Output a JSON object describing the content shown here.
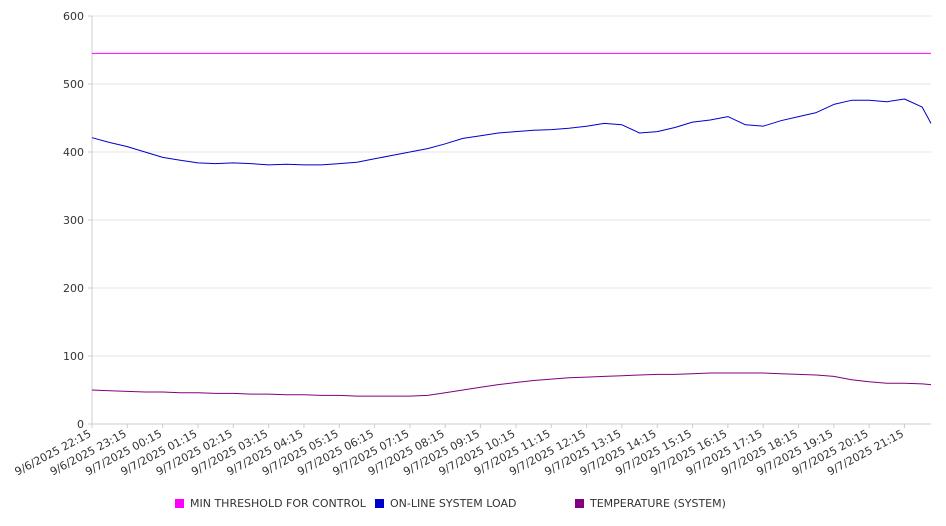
{
  "chart_data": {
    "type": "line",
    "title": "",
    "xlabel": "",
    "ylabel": "",
    "ylim": [
      0,
      600
    ],
    "yticks": [
      0,
      100,
      200,
      300,
      400,
      500,
      600
    ],
    "grid": true,
    "legend_position": "bottom",
    "x_ticks": [
      "9/6/2025 22:15",
      "9/6/2025 23:15",
      "9/7/2025 00:15",
      "9/7/2025 01:15",
      "9/7/2025 02:15",
      "9/7/2025 03:15",
      "9/7/2025 04:15",
      "9/7/2025 05:15",
      "9/7/2025 06:15",
      "9/7/2025 07:15",
      "9/7/2025 08:15",
      "9/7/2025 09:15",
      "9/7/2025 10:15",
      "9/7/2025 11:15",
      "9/7/2025 12:15",
      "9/7/2025 13:15",
      "9/7/2025 14:15",
      "9/7/2025 15:15",
      "9/7/2025 16:15",
      "9/7/2025 17:15",
      "9/7/2025 18:15",
      "9/7/2025 19:15",
      "9/7/2025 20:15",
      "9/7/2025 21:15"
    ],
    "x": [
      "9/6/2025 22:15",
      "9/6/2025 22:45",
      "9/6/2025 23:15",
      "9/6/2025 23:45",
      "9/7/2025 00:15",
      "9/7/2025 00:45",
      "9/7/2025 01:15",
      "9/7/2025 01:45",
      "9/7/2025 02:15",
      "9/7/2025 02:45",
      "9/7/2025 03:15",
      "9/7/2025 03:45",
      "9/7/2025 04:15",
      "9/7/2025 04:45",
      "9/7/2025 05:15",
      "9/7/2025 05:45",
      "9/7/2025 06:15",
      "9/7/2025 06:45",
      "9/7/2025 07:15",
      "9/7/2025 07:45",
      "9/7/2025 08:15",
      "9/7/2025 08:45",
      "9/7/2025 09:15",
      "9/7/2025 09:45",
      "9/7/2025 10:15",
      "9/7/2025 10:45",
      "9/7/2025 11:15",
      "9/7/2025 11:45",
      "9/7/2025 12:15",
      "9/7/2025 12:45",
      "9/7/2025 13:15",
      "9/7/2025 13:45",
      "9/7/2025 14:15",
      "9/7/2025 14:45",
      "9/7/2025 15:15",
      "9/7/2025 15:45",
      "9/7/2025 16:15",
      "9/7/2025 16:45",
      "9/7/2025 17:15",
      "9/7/2025 17:45",
      "9/7/2025 18:15",
      "9/7/2025 18:45",
      "9/7/2025 19:15",
      "9/7/2025 19:45",
      "9/7/2025 20:15",
      "9/7/2025 20:45",
      "9/7/2025 21:15",
      "9/7/2025 21:45",
      "9/7/2025 22:00"
    ],
    "series": [
      {
        "name": "MIN THRESHOLD FOR CONTROL",
        "color": "#ff00ff",
        "values": [
          545,
          545,
          545,
          545,
          545,
          545,
          545,
          545,
          545,
          545,
          545,
          545,
          545,
          545,
          545,
          545,
          545,
          545,
          545,
          545,
          545,
          545,
          545,
          545,
          545,
          545,
          545,
          545,
          545,
          545,
          545,
          545,
          545,
          545,
          545,
          545,
          545,
          545,
          545,
          545,
          545,
          545,
          545,
          545,
          545,
          545,
          545,
          545,
          545
        ]
      },
      {
        "name": "ON-LINE SYSTEM LOAD",
        "color": "#0000cc",
        "values": [
          421,
          414,
          408,
          400,
          392,
          388,
          384,
          383,
          384,
          383,
          381,
          382,
          381,
          381,
          383,
          385,
          390,
          395,
          400,
          405,
          412,
          420,
          424,
          428,
          430,
          432,
          433,
          435,
          438,
          442,
          440,
          428,
          430,
          436,
          444,
          447,
          452,
          440,
          438,
          446,
          452,
          458,
          470,
          476,
          476,
          474,
          478,
          466,
          442
        ]
      },
      {
        "name": "TEMPERATURE (SYSTEM)",
        "color": "#800080",
        "values": [
          50,
          49,
          48,
          47,
          47,
          46,
          46,
          45,
          45,
          44,
          44,
          43,
          43,
          42,
          42,
          41,
          41,
          41,
          41,
          42,
          46,
          50,
          54,
          58,
          61,
          64,
          66,
          68,
          69,
          70,
          71,
          72,
          73,
          73,
          74,
          75,
          75,
          75,
          75,
          74,
          73,
          72,
          70,
          65,
          62,
          60,
          60,
          59,
          58
        ]
      }
    ]
  }
}
